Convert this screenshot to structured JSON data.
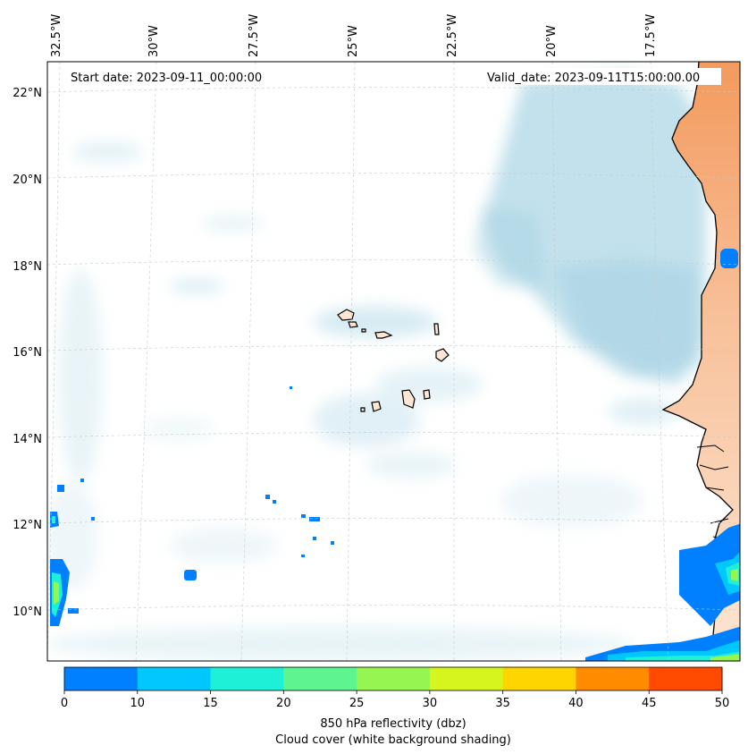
{
  "map": {
    "start_date_text": "Start date: 2023-09-11_00:00:00",
    "valid_date_text": "Valid_date: 2023-09-11T15:00:00.00",
    "longitude_labels": [
      "32.5°W",
      "30°W",
      "27.5°W",
      "25°W",
      "22.5°W",
      "20°W",
      "17.5°W"
    ],
    "latitude_labels": [
      "22°N",
      "20°N",
      "18°N",
      "16°N",
      "14°N",
      "12°N",
      "10°N"
    ],
    "colorbar": {
      "ticks": [
        "0",
        "10",
        "15",
        "20",
        "25",
        "30",
        "35",
        "40",
        "45",
        "50"
      ],
      "colors": [
        "#0080ff",
        "#00c8ff",
        "#1ef0d8",
        "#5cf590",
        "#96f550",
        "#d6f51e",
        "#ffd500",
        "#ff8c00",
        "#ff4a00"
      ],
      "label": "850 hPa reflectivity (dbz)",
      "sublabel": "Cloud cover (white background shading)"
    },
    "cloud_color": "#a8d4e4",
    "land_color": "#f6a06a"
  }
}
